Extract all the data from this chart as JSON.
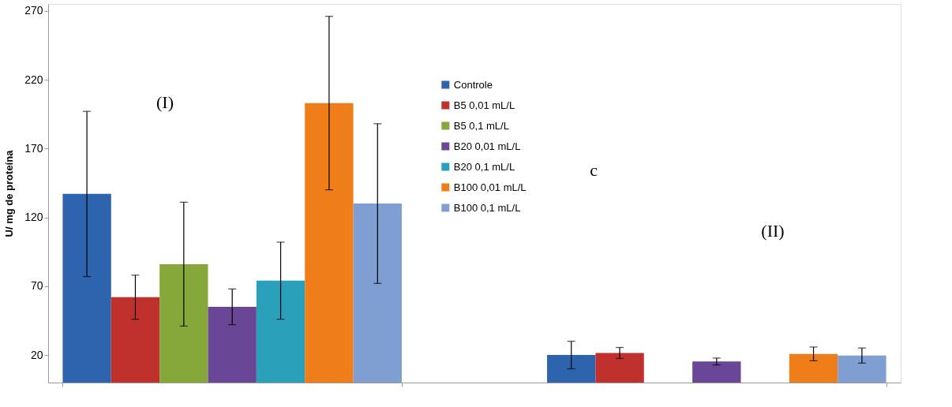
{
  "chart_data": {
    "type": "bar",
    "ylabel": "U/ mg de proteína",
    "categories": [
      null,
      null
    ],
    "ylim": [
      0,
      275
    ],
    "yticks": [
      20,
      70,
      120,
      170,
      220,
      270
    ],
    "tick_labels": "y",
    "grid": false,
    "legend": "top",
    "annotations": [
      "(I)",
      "c",
      "(II)"
    ],
    "series": [
      {
        "name": "Controle",
        "color": "#2e64ad",
        "values": [
          137,
          20
        ],
        "errors": [
          60,
          10
        ]
      },
      {
        "name": "B5 0,01 mL/L",
        "color": "#c0312e",
        "values": [
          62,
          21.5
        ],
        "errors": [
          16,
          4
        ]
      },
      {
        "name": "B5 0,1 mL/L",
        "color": "#86a83a",
        "values": [
          86,
          0
        ],
        "errors": [
          45,
          null
        ]
      },
      {
        "name": "B20  0,01 mL/L",
        "color": "#6a4796",
        "values": [
          55,
          15.3
        ],
        "errors": [
          13,
          2.5
        ]
      },
      {
        "name": "B20  0,1 mL/L",
        "color": "#2aa0bb",
        "values": [
          74,
          0
        ],
        "errors": [
          28,
          null
        ]
      },
      {
        "name": "B100 0,01  mL/L",
        "color": "#ef7d1a",
        "values": [
          203,
          20.8
        ],
        "errors": [
          63,
          5
        ]
      },
      {
        "name": "B100  0,1 mL/L",
        "color": "#7f9fd3",
        "values": [
          130,
          19.6
        ],
        "errors": [
          58,
          5.5
        ]
      }
    ]
  }
}
